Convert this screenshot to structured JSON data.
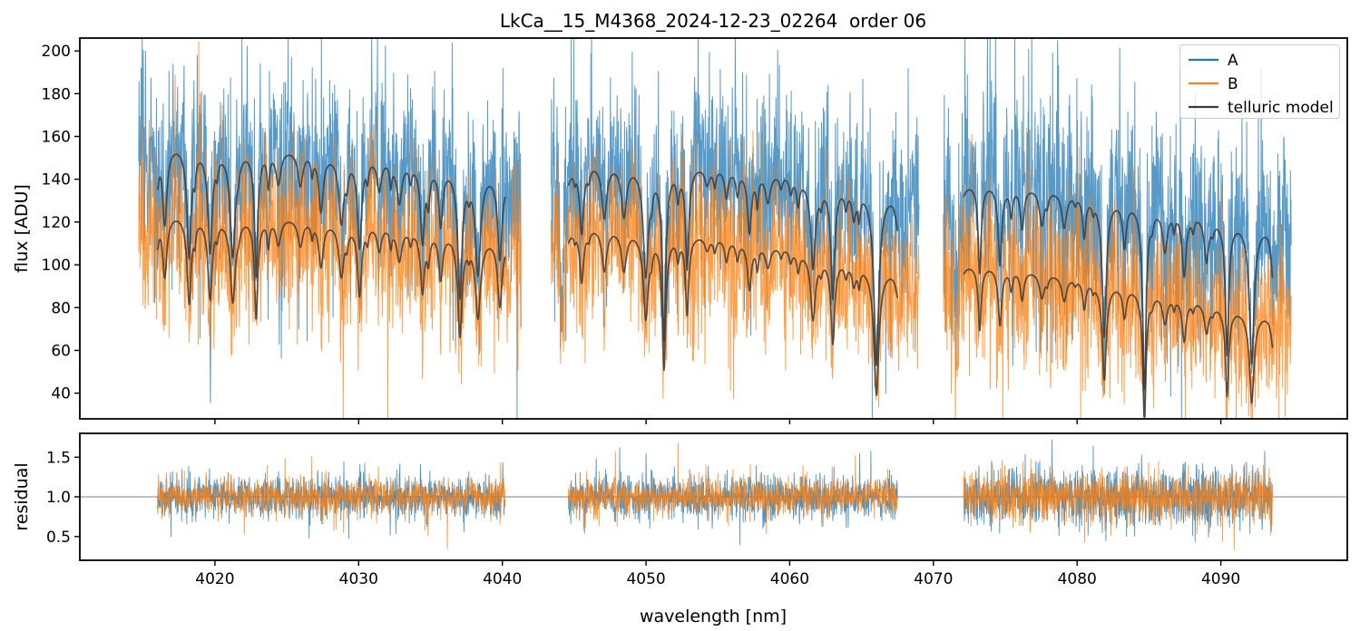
{
  "chart_data": {
    "type": "line",
    "title": "LkCa__15_M4368_2024-12-23_02264  order 06",
    "xlabel": "wavelength [nm]",
    "xlim": [
      4010.6,
      4098.8
    ],
    "xticks": [
      4020,
      4030,
      4040,
      4050,
      4060,
      4070,
      4080,
      4090
    ],
    "grid": false,
    "panels": [
      {
        "id": "flux",
        "ylabel": "flux [ADU]",
        "ylim": [
          28,
          206
        ],
        "yticks": [
          40,
          60,
          80,
          100,
          120,
          140,
          160,
          180,
          200
        ]
      },
      {
        "id": "residual",
        "ylabel": "residual",
        "ylim": [
          0.2,
          1.8
        ],
        "yticks": [
          0.5,
          1.0,
          1.5
        ],
        "refline": 1.0
      }
    ],
    "legend": {
      "position": "upper right",
      "entries": [
        {
          "label": "A",
          "color": "#1f77b4"
        },
        {
          "label": "B",
          "color": "#ff7f0e"
        },
        {
          "label": "telluric model",
          "color": "#3a3a3a"
        }
      ]
    },
    "segments": [
      {
        "flux_range": [
          4014.7,
          4041.3
        ],
        "model_range": [
          4016.0,
          4040.2
        ],
        "continuum_A": [
          160,
          147
        ],
        "continuum_B": [
          127,
          115.5
        ],
        "bow": 1.5,
        "noise_scale": 1.0
      },
      {
        "flux_range": [
          4043.4,
          4069.0
        ],
        "model_range": [
          4044.6,
          4067.5
        ],
        "continuum_A": [
          152,
          137
        ],
        "continuum_B": [
          122,
          100
        ],
        "bow": 2.5,
        "noise_scale": 1.0
      },
      {
        "flux_range": [
          4070.7,
          4094.9
        ],
        "model_range": [
          4072.1,
          4093.6
        ],
        "continuum_A": [
          142,
          120
        ],
        "continuum_B": [
          103,
          78
        ],
        "bow": 2.0,
        "noise_scale": 1.3
      }
    ],
    "telluric": {
      "line_spacing_nm": 1.45,
      "line_width_nm": 0.15,
      "base_depth": [
        0.07,
        0.45
      ],
      "max_total_absorption": 0.68,
      "strong_regions": [
        {
          "range": [
            4044,
            4053
          ],
          "factor": 1.55
        },
        {
          "range": [
            4053,
            4063
          ],
          "factor": 0.6
        },
        {
          "range": [
            4063,
            4068
          ],
          "factor": 1.2
        },
        {
          "range": [
            4084,
            4094
          ],
          "factor": 1.65
        }
      ]
    },
    "noise": {
      "sigma_flux_A": 0.155,
      "sigma_flux_B": 0.175,
      "sigma_resid_A": 0.135,
      "sigma_resid_B": 0.115,
      "outlier_frac": 0.06,
      "outlier_sigma": 0.26
    }
  }
}
